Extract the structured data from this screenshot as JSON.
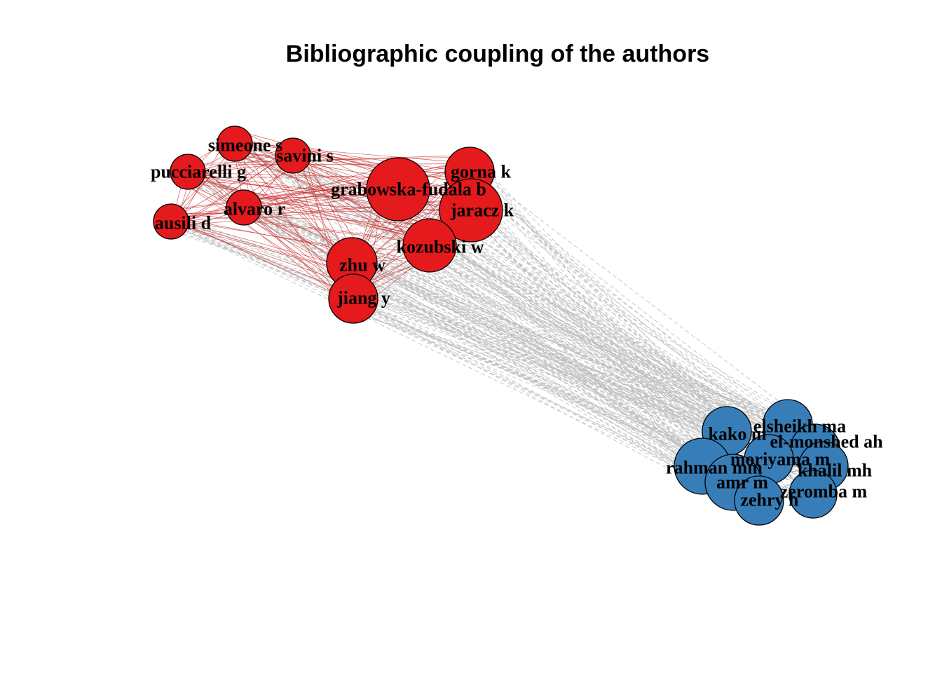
{
  "title": "Bibliographic coupling of the authors",
  "colors": {
    "cluster_red": "#e41a1c",
    "cluster_blue": "#377eb8",
    "intra_edge": "#c62828",
    "inter_edge": "#bdbdbd",
    "node_border": "#000000"
  },
  "clusters": [
    {
      "id": "red",
      "color": "#e41a1c"
    },
    {
      "id": "blue",
      "color": "#377eb8"
    }
  ],
  "nodes": [
    {
      "label": "simeone s",
      "cluster": "red"
    },
    {
      "label": "savini s",
      "cluster": "red"
    },
    {
      "label": "pucciarelli g",
      "cluster": "red"
    },
    {
      "label": "alvaro r",
      "cluster": "red"
    },
    {
      "label": "ausili d",
      "cluster": "red"
    },
    {
      "label": "grabowska-fudala b",
      "cluster": "red"
    },
    {
      "label": "gorna k",
      "cluster": "red"
    },
    {
      "label": "jaracz k",
      "cluster": "red"
    },
    {
      "label": "kozubski w",
      "cluster": "red"
    },
    {
      "label": "zhu w",
      "cluster": "red"
    },
    {
      "label": "jiang y",
      "cluster": "red"
    },
    {
      "label": "elsheikh ma",
      "cluster": "blue"
    },
    {
      "label": "kako m",
      "cluster": "blue"
    },
    {
      "label": "el-monshed ah",
      "cluster": "blue"
    },
    {
      "label": "moriyama m",
      "cluster": "blue"
    },
    {
      "label": "rahman mm",
      "cluster": "blue"
    },
    {
      "label": "khalil mh",
      "cluster": "blue"
    },
    {
      "label": "amr m",
      "cluster": "blue"
    },
    {
      "label": "zeromba m",
      "cluster": "blue"
    },
    {
      "label": "zehry h",
      "cluster": "blue"
    }
  ]
}
